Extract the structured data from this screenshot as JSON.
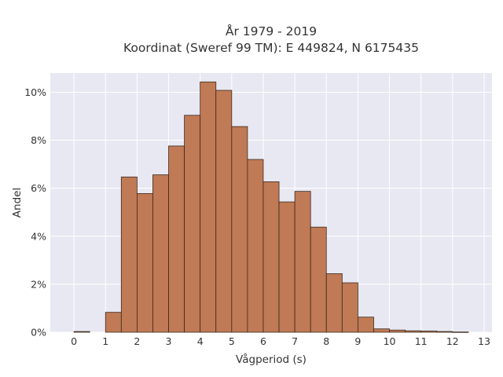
{
  "chart_data": {
    "type": "bar",
    "title": [
      "År 1979 - 2019",
      "Koordinat (Sweref 99 TM): E 449824, N 6175435"
    ],
    "xlabel": "Vågperiod (s)",
    "ylabel": "Andel",
    "xlim": [
      -0.75,
      13.25
    ],
    "ylim": [
      0,
      0.108
    ],
    "xticks": [
      0,
      1,
      2,
      3,
      4,
      5,
      6,
      7,
      8,
      9,
      10,
      11,
      12,
      13
    ],
    "yticks": [
      0,
      0.02,
      0.04,
      0.06,
      0.08,
      0.1
    ],
    "ytick_labels": [
      "0%",
      "2%",
      "4%",
      "6%",
      "8%",
      "10%"
    ],
    "bin_width": 0.5,
    "bin_starts": [
      0,
      0.5,
      1,
      1.5,
      2,
      2.5,
      3,
      3.5,
      4,
      4.5,
      5,
      5.5,
      6,
      6.5,
      7,
      7.5,
      8,
      8.5,
      9,
      9.5,
      10,
      10.5,
      11,
      11.5,
      12,
      12.5
    ],
    "values": [
      0.0003,
      0,
      0.0083,
      0.0647,
      0.0578,
      0.0656,
      0.0776,
      0.0904,
      0.1043,
      0.1008,
      0.0857,
      0.072,
      0.0627,
      0.0543,
      0.0587,
      0.0438,
      0.0244,
      0.0206,
      0.0063,
      0.0014,
      0.0009,
      0.0006,
      0.0005,
      0.0003,
      0.0001,
      0
    ],
    "bar_color": "#c07a55",
    "bar_edge": "#3a2a1e",
    "plot_background": "#e8e8f2",
    "grid": true,
    "grid_color": "#ffffff"
  }
}
